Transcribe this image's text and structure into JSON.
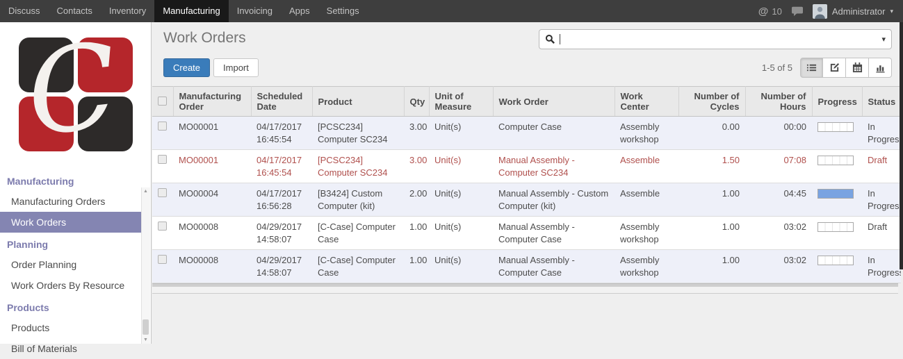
{
  "topbar": {
    "apps": [
      "Discuss",
      "Contacts",
      "Inventory",
      "Manufacturing",
      "Invoicing",
      "Apps",
      "Settings"
    ],
    "active_app": "Manufacturing",
    "mention_count": "10",
    "user_name": "Administrator"
  },
  "sidebar": {
    "sections": [
      {
        "label": "Manufacturing",
        "items": [
          {
            "label": "Manufacturing Orders",
            "active": false
          },
          {
            "label": "Work Orders",
            "active": true
          }
        ]
      },
      {
        "label": "Planning",
        "items": [
          {
            "label": "Order Planning",
            "active": false
          },
          {
            "label": "Work Orders By Resource",
            "active": false
          }
        ]
      },
      {
        "label": "Products",
        "items": [
          {
            "label": "Products",
            "active": false
          },
          {
            "label": "Bill of Materials",
            "active": false
          }
        ]
      }
    ]
  },
  "header": {
    "title": "Work Orders",
    "create_label": "Create",
    "import_label": "Import",
    "pager": "1-5 of 5"
  },
  "search": {
    "value": ""
  },
  "views": [
    {
      "id": "list",
      "active": true
    },
    {
      "id": "form",
      "active": false
    },
    {
      "id": "calendar",
      "active": false
    },
    {
      "id": "graph",
      "active": false
    }
  ],
  "icons": {
    "search": "magnifier",
    "mention": "@",
    "chat": "speech-bubble",
    "dropdown_caret": "▾",
    "user_caret": "▾",
    "scroll_up": "▲",
    "scroll_down": "▼"
  },
  "table": {
    "columns": [
      {
        "key": "manufacturing_order",
        "label": "Manufacturing Order"
      },
      {
        "key": "scheduled_date",
        "label": "Scheduled Date"
      },
      {
        "key": "product",
        "label": "Product"
      },
      {
        "key": "qty",
        "label": "Qty",
        "align": "right"
      },
      {
        "key": "uom",
        "label": "Unit of Measure"
      },
      {
        "key": "work_order",
        "label": "Work Order"
      },
      {
        "key": "work_center",
        "label": "Work Center"
      },
      {
        "key": "cycles",
        "label": "Number of Cycles",
        "align": "right"
      },
      {
        "key": "hours",
        "label": "Number of Hours",
        "align": "right"
      },
      {
        "key": "progress",
        "label": "Progress"
      },
      {
        "key": "status",
        "label": "Status"
      }
    ],
    "rows": [
      {
        "manufacturing_order": "MO00001",
        "scheduled_date": "04/17/2017 16:45:54",
        "product": "[PCSC234] Computer SC234",
        "qty": "3.00",
        "uom": "Unit(s)",
        "work_order": "Computer Case",
        "work_center": "Assembly workshop",
        "cycles": "0.00",
        "hours": "00:00",
        "progress": 0,
        "status": "In Progress",
        "highlight": false
      },
      {
        "manufacturing_order": "MO00001",
        "scheduled_date": "04/17/2017 16:45:54",
        "product": "[PCSC234] Computer SC234",
        "qty": "3.00",
        "uom": "Unit(s)",
        "work_order": "Manual Assembly - Computer SC234",
        "work_center": "Assemble",
        "cycles": "1.50",
        "hours": "07:08",
        "progress": 0,
        "status": "Draft",
        "highlight": true
      },
      {
        "manufacturing_order": "MO00004",
        "scheduled_date": "04/17/2017 16:56:28",
        "product": "[B3424] Custom Computer (kit)",
        "qty": "2.00",
        "uom": "Unit(s)",
        "work_order": "Manual Assembly - Custom Computer (kit)",
        "work_center": "Assemble",
        "cycles": "1.00",
        "hours": "04:45",
        "progress": 100,
        "status": "In Progress",
        "highlight": false
      },
      {
        "manufacturing_order": "MO00008",
        "scheduled_date": "04/29/2017 14:58:07",
        "product": "[C-Case] Computer Case",
        "qty": "1.00",
        "uom": "Unit(s)",
        "work_order": "Manual Assembly - Computer Case",
        "work_center": "Assembly workshop",
        "cycles": "1.00",
        "hours": "03:02",
        "progress": 0,
        "status": "Draft",
        "highlight": false
      },
      {
        "manufacturing_order": "MO00008",
        "scheduled_date": "04/29/2017 14:58:07",
        "product": "[C-Case] Computer Case",
        "qty": "1.00",
        "uom": "Unit(s)",
        "work_order": "Manual Assembly - Computer Case",
        "work_center": "Assembly workshop",
        "cycles": "1.00",
        "hours": "03:02",
        "progress": 0,
        "status": "In Progress",
        "highlight": false
      }
    ]
  },
  "colors": {
    "topbar_bg": "#3e3e3e",
    "topbar_active_bg": "#191919",
    "purple": "#7c7bad",
    "sidebar_active_bg": "#8485b2",
    "accent_blue": "#3a7cba",
    "red": "#b0504d",
    "row_alt": "#eef0f9",
    "progress_fill": "#79a3e1",
    "logo_red": "#b5262b",
    "logo_black": "#2d2a29"
  }
}
